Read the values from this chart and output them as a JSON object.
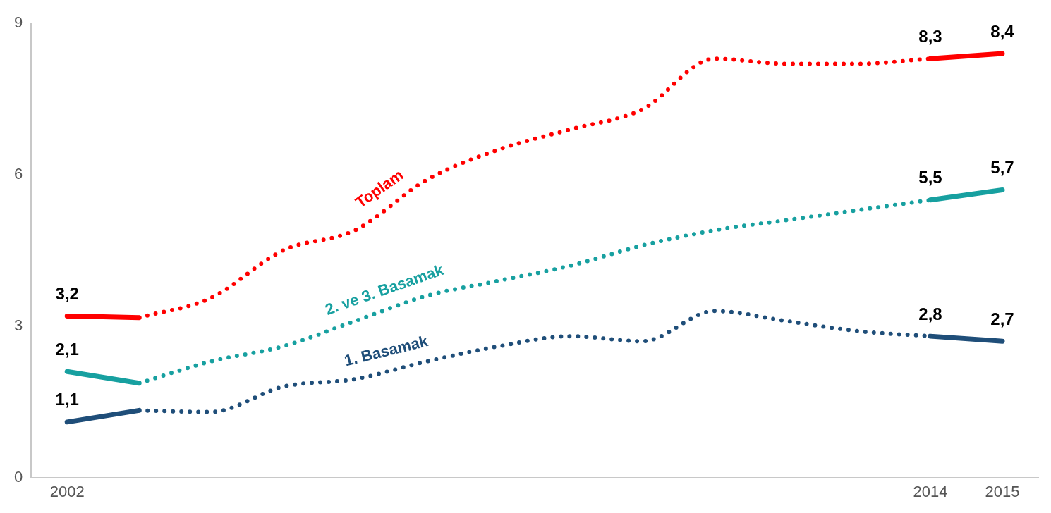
{
  "chart_data": {
    "type": "line",
    "categories": [
      "2002",
      null,
      null,
      null,
      null,
      null,
      null,
      null,
      null,
      null,
      null,
      null,
      "2014",
      "2015"
    ],
    "ylim": [
      0,
      9
    ],
    "yticks": [
      0,
      3,
      6,
      9
    ],
    "grid": false,
    "legend": false,
    "marker": "none",
    "series": [
      {
        "name": "Toplam",
        "color": "#ff0000",
        "line_style": "dotted",
        "values": [
          null,
          3.17,
          3.56,
          4.5,
          4.9,
          5.9,
          6.5,
          6.9,
          7.3,
          8.3,
          8.2,
          8.2,
          8.3,
          null
        ]
      },
      {
        "color": "#ff0000",
        "line_style": "solid",
        "values": [
          3.2,
          3.17,
          null,
          null,
          null,
          null,
          null,
          null,
          null,
          null,
          null,
          null,
          8.3,
          8.4
        ],
        "value_labels": [
          "3,2",
          null,
          null,
          null,
          null,
          null,
          null,
          null,
          null,
          null,
          null,
          null,
          "8,3",
          "8,4"
        ]
      },
      {
        "name": "2. ve 3. Basamak",
        "color": "#17a0a0",
        "line_style": "dotted",
        "values": [
          null,
          1.87,
          2.3,
          2.6,
          3.1,
          3.6,
          3.9,
          4.2,
          4.6,
          4.9,
          5.1,
          5.3,
          5.5,
          null
        ]
      },
      {
        "color": "#17a0a0",
        "line_style": "solid",
        "values": [
          2.1,
          1.87,
          null,
          null,
          null,
          null,
          null,
          null,
          null,
          null,
          null,
          null,
          5.5,
          5.7
        ],
        "value_labels": [
          "2,1",
          null,
          null,
          null,
          null,
          null,
          null,
          null,
          null,
          null,
          null,
          null,
          "5,5",
          "5,7"
        ]
      },
      {
        "name": "1. Basamak",
        "color": "#1f4e79",
        "line_style": "dotted",
        "values": [
          null,
          1.33,
          1.3,
          1.8,
          1.95,
          2.3,
          2.6,
          2.8,
          2.7,
          3.3,
          3.1,
          2.9,
          2.8,
          null
        ]
      },
      {
        "color": "#1f4e79",
        "line_style": "solid",
        "values": [
          1.1,
          1.33,
          null,
          null,
          null,
          null,
          null,
          null,
          null,
          null,
          null,
          null,
          2.8,
          2.7
        ],
        "value_labels": [
          "1,1",
          null,
          null,
          null,
          null,
          null,
          null,
          null,
          null,
          null,
          null,
          null,
          "2,8",
          "2,7"
        ]
      }
    ]
  }
}
